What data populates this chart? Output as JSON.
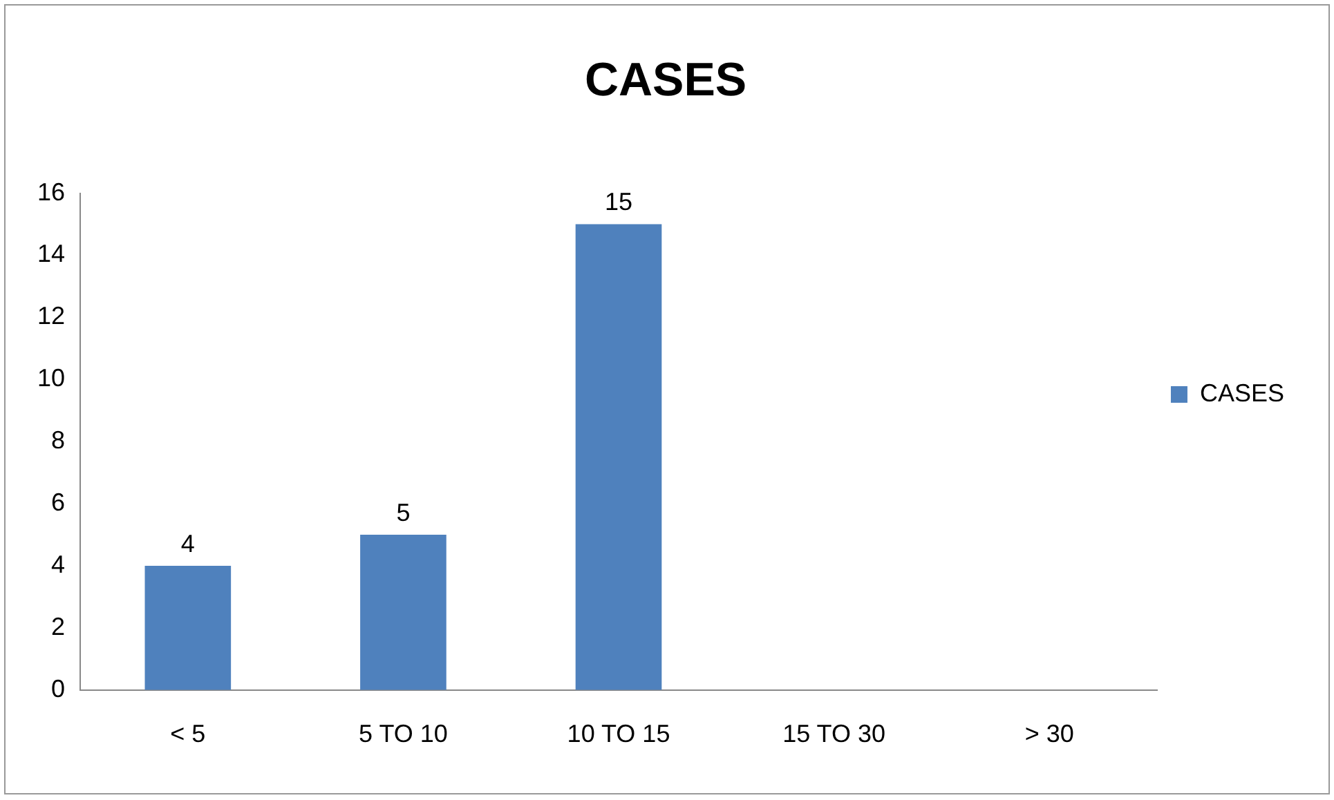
{
  "chart_data": {
    "type": "bar",
    "title": "CASES",
    "categories": [
      "< 5",
      "5 TO 10",
      "10 TO 15",
      "15 TO 30",
      "> 30"
    ],
    "series": [
      {
        "name": "CASES",
        "color": "#4f81bd",
        "values": [
          4,
          5,
          15,
          null,
          null
        ]
      }
    ],
    "ylim": [
      0,
      16
    ],
    "yticks": [
      0,
      2,
      4,
      6,
      8,
      10,
      12,
      14,
      16
    ],
    "grid": false,
    "legend": "right",
    "data_labels": true
  }
}
